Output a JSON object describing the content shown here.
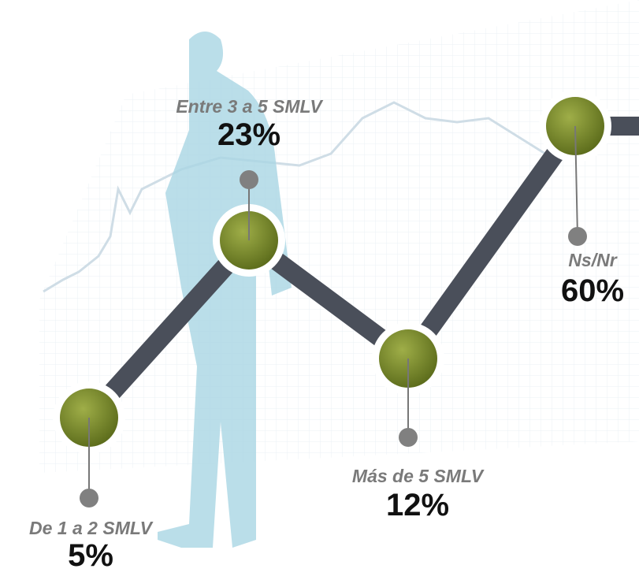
{
  "items": [
    {
      "label": "De 1 a 2 SMLV",
      "value": "5%"
    },
    {
      "label": "Entre 3 a 5 SMLV",
      "value": "23%"
    },
    {
      "label": "Más de 5 SMLV",
      "value": "12%"
    },
    {
      "label": "Ns/Nr",
      "value": "60%"
    }
  ]
}
